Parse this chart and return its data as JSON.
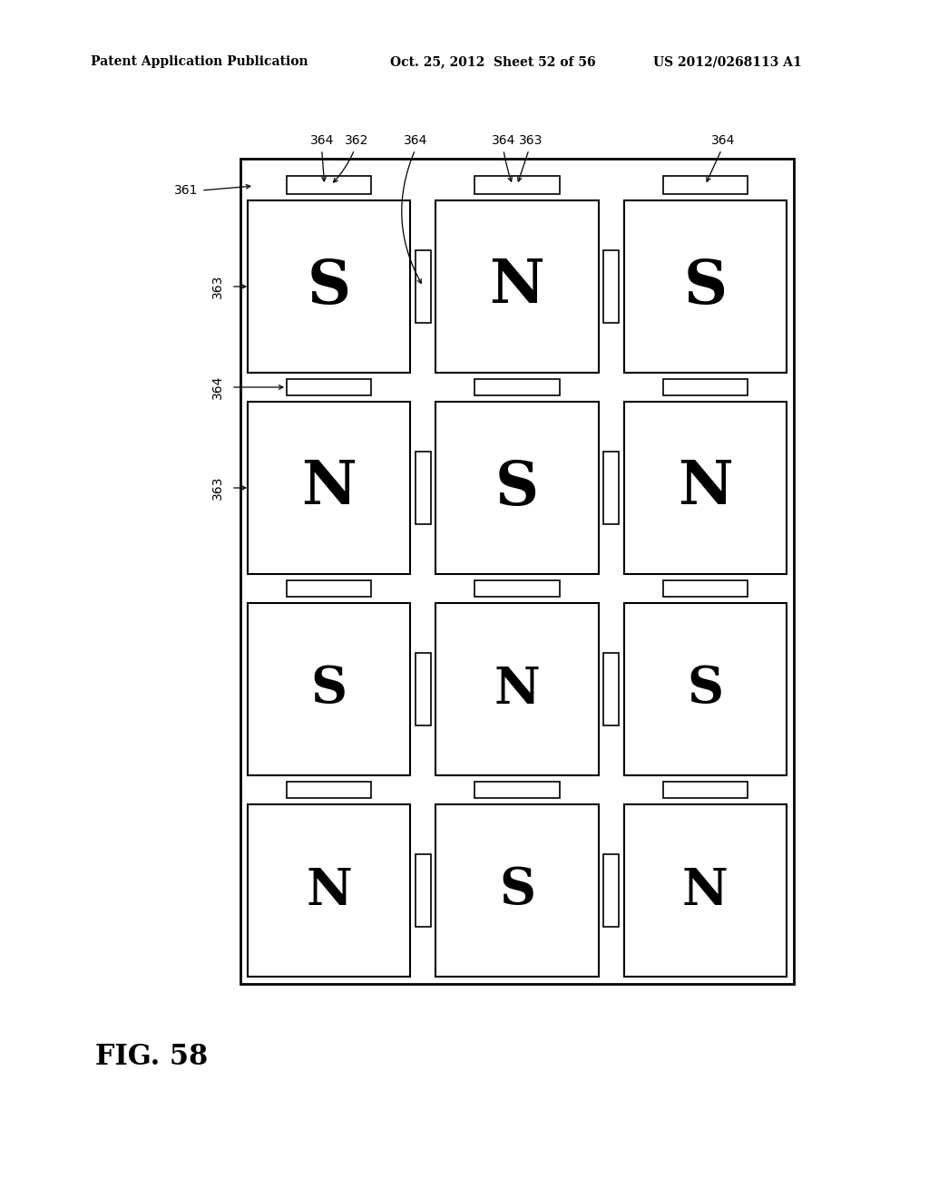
{
  "header_left": "Patent Application Publication",
  "header_mid": "Oct. 25, 2012  Sheet 52 of 56",
  "header_right": "US 2012/0268113 A1",
  "fig_label": "FIG. 58",
  "background": "#ffffff",
  "cell_labels": [
    [
      "S",
      "N",
      "S"
    ],
    [
      "N",
      "S",
      "N"
    ],
    [
      "S",
      "N",
      "S"
    ],
    [
      "N",
      "S",
      "N"
    ]
  ]
}
